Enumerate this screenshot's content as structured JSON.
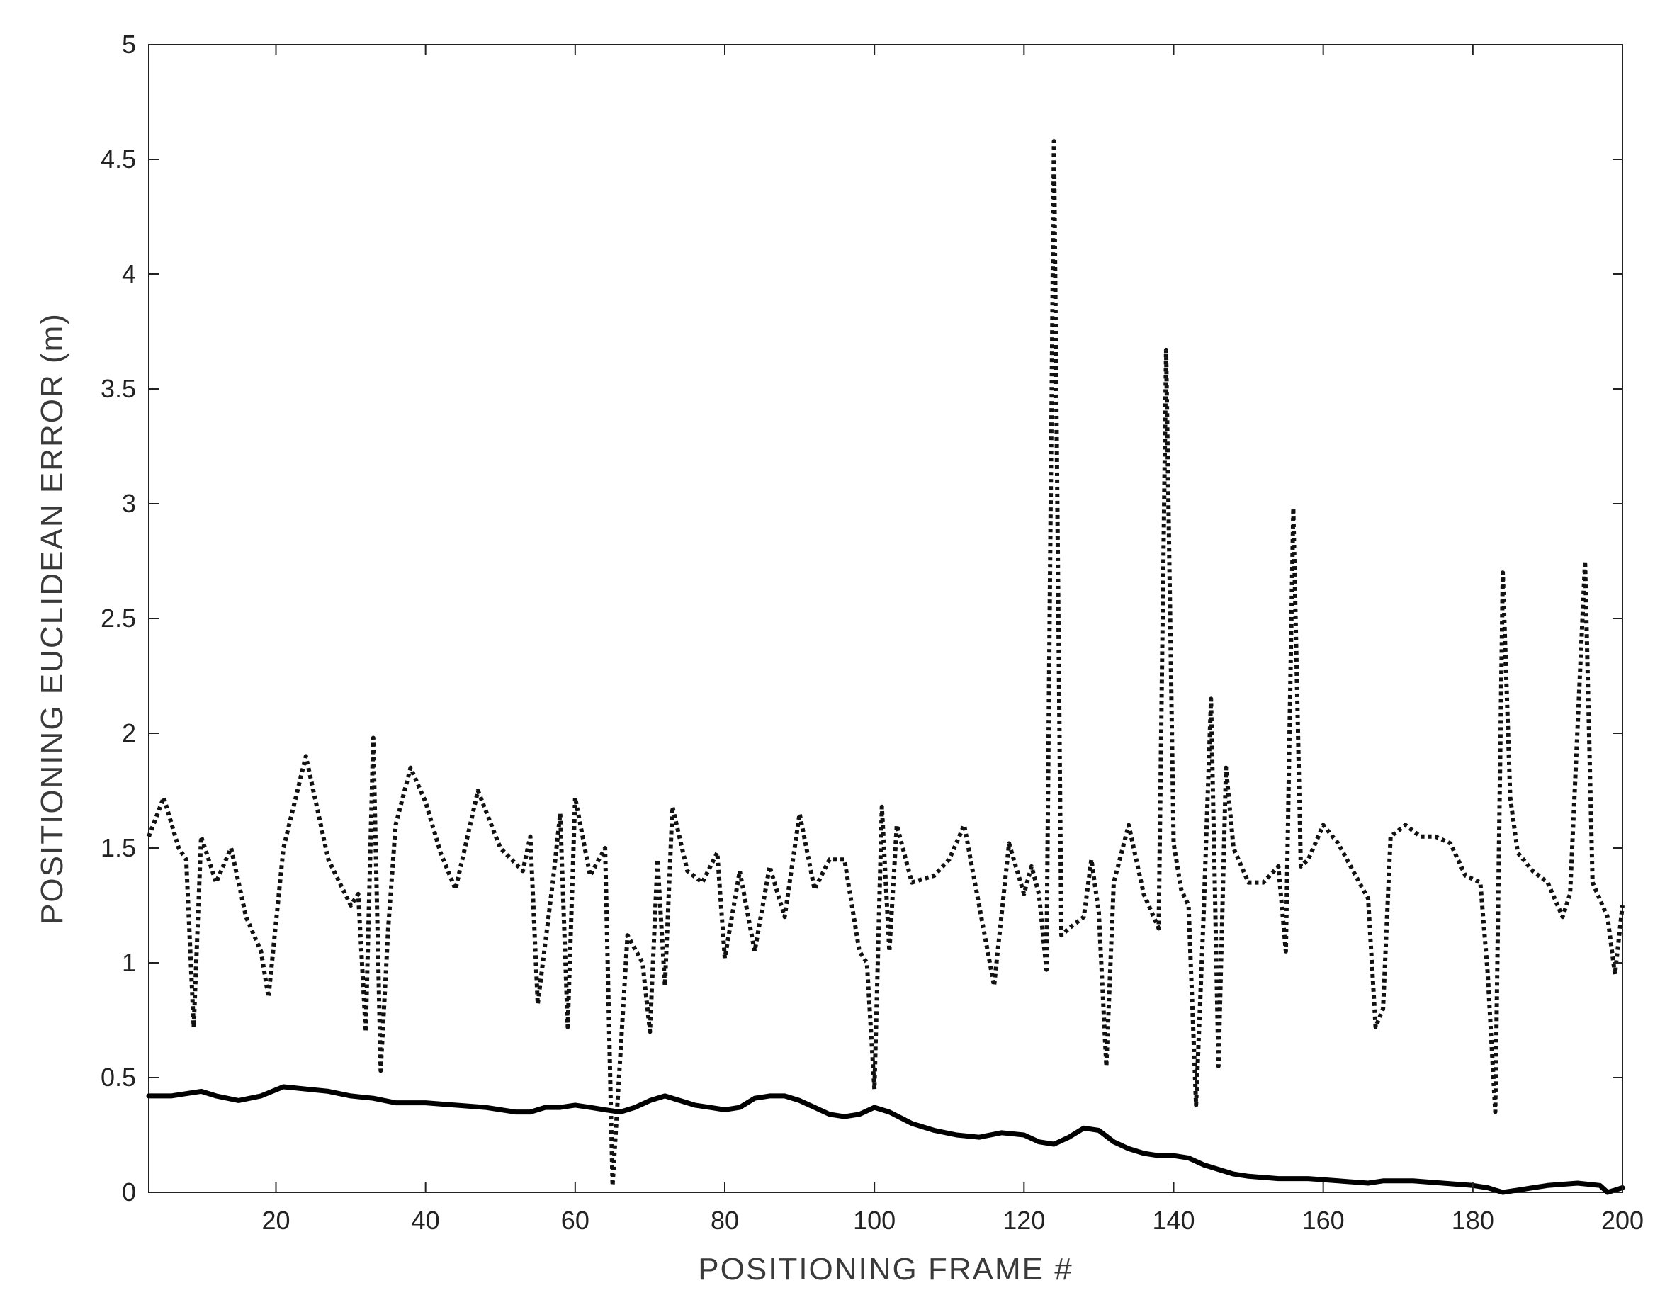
{
  "chart_data": {
    "type": "line",
    "title": "",
    "xlabel": "POSITIONING FRAME #",
    "ylabel": "POSITIONING EUCLIDEAN ERROR (m)",
    "xlim": [
      3,
      200
    ],
    "ylim": [
      0,
      5
    ],
    "xticks": [
      20,
      40,
      60,
      80,
      100,
      120,
      140,
      160,
      180,
      200
    ],
    "xtick_labels": [
      "20",
      "40",
      "60",
      "80",
      "100",
      "120",
      "140",
      "160",
      "180",
      "200"
    ],
    "yticks": [
      0,
      0.5,
      1,
      1.5,
      2,
      2.5,
      3,
      3.5,
      4,
      4.5,
      5
    ],
    "ytick_labels": [
      "0",
      "0.5",
      "1",
      "1.5",
      "2",
      "2.5",
      "3",
      "3.5",
      "4",
      "4.5",
      "5"
    ],
    "grid": false,
    "legend": "none",
    "series": [
      {
        "style": "dotted",
        "color": "#111111",
        "x": [
          3,
          5,
          7,
          8,
          9,
          10,
          12,
          14,
          16,
          18,
          19,
          21,
          24,
          27,
          30,
          31,
          32,
          33,
          34,
          35,
          36,
          38,
          40,
          42,
          44,
          47,
          50,
          53,
          54,
          55,
          57,
          58,
          59,
          60,
          62,
          64,
          65,
          67,
          69,
          70,
          71,
          72,
          73,
          75,
          77,
          79,
          80,
          82,
          84,
          86,
          88,
          90,
          92,
          94,
          96,
          98,
          99,
          100,
          101,
          102,
          103,
          105,
          108,
          110,
          112,
          114,
          116,
          118,
          120,
          121,
          122,
          123,
          124,
          125,
          126,
          128,
          129,
          130,
          131,
          132,
          134,
          136,
          138,
          139,
          140,
          141,
          142,
          143,
          144,
          145,
          146,
          147,
          148,
          150,
          152,
          154,
          155,
          156,
          157,
          158,
          160,
          162,
          164,
          166,
          167,
          168,
          169,
          171,
          173,
          175,
          177,
          179,
          181,
          182,
          183,
          184,
          185,
          186,
          188,
          190,
          192,
          193,
          195,
          196,
          198,
          199,
          200
        ],
        "y": [
          1.55,
          1.72,
          1.5,
          1.45,
          0.72,
          1.55,
          1.35,
          1.5,
          1.2,
          1.05,
          0.85,
          1.5,
          1.9,
          1.45,
          1.25,
          1.3,
          0.7,
          1.98,
          0.53,
          1.15,
          1.6,
          1.85,
          1.7,
          1.48,
          1.32,
          1.75,
          1.5,
          1.4,
          1.55,
          0.82,
          1.35,
          1.65,
          0.72,
          1.72,
          1.38,
          1.5,
          0.03,
          1.12,
          1.0,
          0.7,
          1.45,
          0.9,
          1.68,
          1.4,
          1.35,
          1.48,
          1.02,
          1.4,
          1.05,
          1.42,
          1.2,
          1.65,
          1.32,
          1.45,
          1.45,
          1.05,
          1.0,
          0.45,
          1.68,
          1.05,
          1.6,
          1.35,
          1.38,
          1.45,
          1.6,
          1.25,
          0.9,
          1.52,
          1.3,
          1.42,
          1.3,
          0.97,
          4.58,
          1.12,
          1.15,
          1.2,
          1.45,
          1.22,
          0.55,
          1.35,
          1.6,
          1.3,
          1.15,
          3.67,
          1.52,
          1.32,
          1.25,
          0.38,
          1.2,
          2.15,
          0.55,
          1.85,
          1.5,
          1.35,
          1.35,
          1.42,
          1.05,
          2.98,
          1.42,
          1.45,
          1.6,
          1.52,
          1.4,
          1.28,
          0.72,
          0.8,
          1.55,
          1.6,
          1.55,
          1.55,
          1.52,
          1.38,
          1.35,
          0.95,
          0.35,
          2.7,
          1.72,
          1.48,
          1.4,
          1.35,
          1.2,
          1.3,
          2.75,
          1.35,
          1.2,
          0.95,
          1.25
        ]
      },
      {
        "style": "solid",
        "color": "#000000",
        "x": [
          3,
          6,
          10,
          12,
          15,
          18,
          21,
          24,
          27,
          30,
          33,
          36,
          40,
          44,
          48,
          52,
          54,
          56,
          58,
          60,
          62,
          64,
          66,
          68,
          70,
          72,
          74,
          76,
          78,
          80,
          82,
          84,
          86,
          88,
          90,
          92,
          94,
          96,
          98,
          100,
          102,
          105,
          108,
          111,
          114,
          117,
          120,
          122,
          124,
          126,
          128,
          130,
          132,
          134,
          136,
          138,
          140,
          142,
          144,
          146,
          148,
          150,
          154,
          158,
          162,
          166,
          168,
          172,
          176,
          180,
          182,
          183,
          184,
          186,
          190,
          194,
          197,
          198,
          199,
          200
        ],
        "y": [
          0.42,
          0.42,
          0.44,
          0.42,
          0.4,
          0.42,
          0.46,
          0.45,
          0.44,
          0.42,
          0.41,
          0.39,
          0.39,
          0.38,
          0.37,
          0.35,
          0.35,
          0.37,
          0.37,
          0.38,
          0.37,
          0.36,
          0.35,
          0.37,
          0.4,
          0.42,
          0.4,
          0.38,
          0.37,
          0.36,
          0.37,
          0.41,
          0.42,
          0.42,
          0.4,
          0.37,
          0.34,
          0.33,
          0.34,
          0.37,
          0.35,
          0.3,
          0.27,
          0.25,
          0.24,
          0.26,
          0.25,
          0.22,
          0.21,
          0.24,
          0.28,
          0.27,
          0.22,
          0.19,
          0.17,
          0.16,
          0.16,
          0.15,
          0.12,
          0.1,
          0.08,
          0.07,
          0.06,
          0.06,
          0.05,
          0.04,
          0.05,
          0.05,
          0.04,
          0.03,
          0.02,
          0.01,
          0.0,
          0.01,
          0.03,
          0.04,
          0.03,
          0.0,
          0.01,
          0.02
        ]
      }
    ]
  }
}
